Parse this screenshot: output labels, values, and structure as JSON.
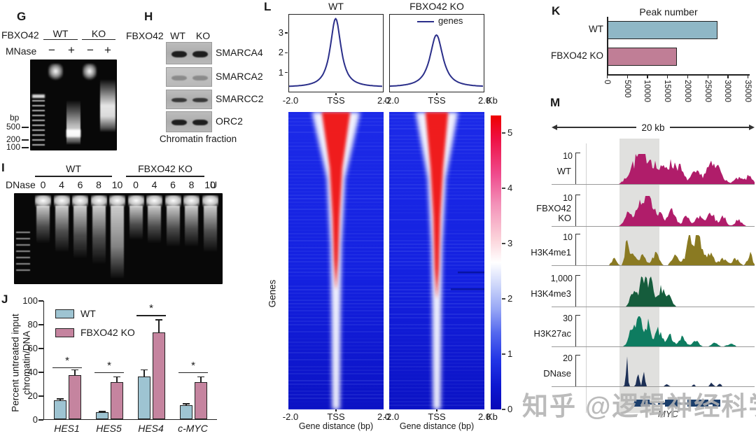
{
  "watermark": "知乎 @逻辑神经科学",
  "panel_g": {
    "label": "G",
    "row1_label": "FBXO42",
    "groups": [
      "WT",
      "KO"
    ],
    "row2_label": "MNase",
    "signs": [
      "−",
      "+",
      "−",
      "+"
    ],
    "bp": "bp",
    "markers": [
      "500",
      "200",
      "100"
    ]
  },
  "panel_h": {
    "label": "H",
    "header": "FBXO42",
    "cols": [
      "WT",
      "KO"
    ],
    "blots": [
      "SMARCA4",
      "SMARCA2",
      "SMARCC2",
      "ORC2"
    ],
    "caption": "Chromatin fraction"
  },
  "panel_i": {
    "label": "I",
    "groups": [
      "WT",
      "FBXO42 KO"
    ],
    "row_label": "DNase",
    "doses": [
      "0",
      "4",
      "6",
      "8",
      "10",
      "0",
      "4",
      "6",
      "8",
      "10"
    ],
    "unit": "U"
  },
  "panel_j": {
    "label": "J"
  },
  "panel_k": {
    "label": "K"
  },
  "panel_l": {
    "label": "L"
  },
  "panel_m": {
    "label": "M"
  },
  "chart_data": [
    {
      "id": "J",
      "type": "bar",
      "ylabel": "Percent untreated input chromatin/DNA",
      "categories": [
        "HES1",
        "HES5",
        "HES4",
        "c-MYC"
      ],
      "series": [
        {
          "name": "WT",
          "color": "#9ec4d2",
          "values": [
            16,
            6,
            36,
            12
          ],
          "errors": [
            1.5,
            1,
            6,
            1.5
          ]
        },
        {
          "name": "FBXO42 KO",
          "color": "#c5849f",
          "values": [
            37,
            31,
            73,
            31
          ],
          "errors": [
            5,
            5,
            11,
            5
          ]
        }
      ],
      "ylim": [
        0,
        100
      ],
      "yticks": [
        0,
        20,
        40,
        60,
        80,
        100
      ],
      "significance": [
        {
          "label": "*",
          "y": 44
        },
        {
          "label": "*",
          "y": 40
        },
        {
          "label": "*",
          "y": 88
        },
        {
          "label": "*",
          "y": 40
        }
      ]
    },
    {
      "id": "K",
      "type": "bar",
      "orientation": "horizontal",
      "title": "Peak number",
      "categories": [
        "WT",
        "FBXO42 KO"
      ],
      "values": [
        27400,
        17300
      ],
      "colors": [
        "#8fb7c6",
        "#c07e96"
      ],
      "xlim": [
        0,
        35000
      ],
      "xticks": [
        0,
        5000,
        10000,
        15000,
        20000,
        25000,
        30000,
        35000
      ]
    },
    {
      "id": "L-profiles",
      "type": "line",
      "legend": "genes",
      "line_color": "#2b2f8a",
      "x_ticks": [
        "-2.0",
        "TSS",
        "2.0"
      ],
      "x_unit": "Kb",
      "yticks": [
        1,
        2,
        3
      ],
      "baseline": 0.2,
      "panels": [
        {
          "title": "WT",
          "peak": 3.75,
          "width": 0.3
        },
        {
          "title": "FBXO42 KO",
          "peak": 2.9,
          "width": 0.36
        }
      ]
    },
    {
      "id": "L-heatmaps",
      "type": "heatmap",
      "row_label": "Genes",
      "xlabel": "Gene distance (bp)",
      "x_ticks": [
        "-2.0",
        "TSS",
        "2.0"
      ],
      "x_unit": "Kb",
      "colorbar_ticks": [
        5,
        4,
        3,
        2,
        1,
        0
      ],
      "colorbar_colors": {
        "high": "#ee0000",
        "mid": "#ffffff",
        "low": "#0a0ac0"
      },
      "panels": [
        {
          "title": "WT",
          "core_top_w": 0.3,
          "core_depth": 0.6
        },
        {
          "title": "FBXO42 KO",
          "core_top_w": 0.24,
          "core_depth": 0.63
        }
      ]
    },
    {
      "id": "M",
      "type": "genome-tracks",
      "scale_label": "20 kb",
      "gene": "MYC",
      "tracks": [
        {
          "name": "WT",
          "scale": "10",
          "color": "#b01d6a",
          "clusters": [
            [
              0.24,
              0.035,
              0.55
            ],
            [
              0.3,
              0.03,
              0.9
            ],
            [
              0.36,
              0.03,
              0.65
            ],
            [
              0.45,
              0.035,
              0.6
            ],
            [
              0.52,
              0.03,
              0.55
            ],
            [
              0.63,
              0.03,
              0.35
            ],
            [
              0.72,
              0.03,
              0.55
            ],
            [
              0.78,
              0.025,
              0.45
            ],
            [
              0.9,
              0.03,
              0.18
            ],
            [
              0.97,
              0.02,
              0.25
            ]
          ]
        },
        {
          "name": "FBXO42 KO",
          "scale": "10",
          "color": "#b01d6a",
          "clusters": [
            [
              0.2,
              0.02,
              0.35
            ],
            [
              0.28,
              0.03,
              0.75
            ],
            [
              0.33,
              0.025,
              0.85
            ],
            [
              0.4,
              0.025,
              0.5
            ],
            [
              0.48,
              0.025,
              0.45
            ],
            [
              0.57,
              0.02,
              0.3
            ],
            [
              0.66,
              0.025,
              0.35
            ],
            [
              0.73,
              0.02,
              0.4
            ],
            [
              0.8,
              0.02,
              0.3
            ],
            [
              0.9,
              0.02,
              0.2
            ]
          ]
        },
        {
          "name": "H3K4me1",
          "scale": "10",
          "color": "#8a7a22",
          "clusters": [
            [
              0.12,
              0.015,
              0.2
            ],
            [
              0.2,
              0.012,
              0.8
            ],
            [
              0.24,
              0.015,
              0.35
            ],
            [
              0.3,
              0.02,
              0.3
            ],
            [
              0.38,
              0.02,
              0.35
            ],
            [
              0.5,
              0.02,
              0.3
            ],
            [
              0.6,
              0.025,
              0.95
            ],
            [
              0.65,
              0.02,
              0.8
            ],
            [
              0.72,
              0.02,
              0.45
            ],
            [
              0.8,
              0.02,
              0.25
            ],
            [
              0.88,
              0.02,
              0.2
            ],
            [
              0.97,
              0.015,
              0.35
            ]
          ]
        },
        {
          "name": "H3K4me3",
          "scale": "1,000",
          "color": "#155c3c",
          "clusters": [
            [
              0.24,
              0.018,
              0.55
            ],
            [
              0.3,
              0.02,
              0.95
            ],
            [
              0.35,
              0.018,
              0.85
            ],
            [
              0.42,
              0.02,
              0.6
            ],
            [
              0.47,
              0.015,
              0.3
            ]
          ]
        },
        {
          "name": "H3K27ac",
          "scale": "30",
          "color": "#0e7c60",
          "clusters": [
            [
              0.23,
              0.02,
              0.55
            ],
            [
              0.28,
              0.018,
              0.95
            ],
            [
              0.33,
              0.02,
              0.7
            ],
            [
              0.4,
              0.02,
              0.55
            ],
            [
              0.47,
              0.02,
              0.35
            ],
            [
              0.55,
              0.02,
              0.3
            ],
            [
              0.63,
              0.02,
              0.18
            ],
            [
              0.75,
              0.02,
              0.12
            ],
            [
              0.85,
              0.02,
              0.08
            ]
          ]
        },
        {
          "name": "DNase",
          "scale": "20",
          "color": "#1c2f55",
          "clusters": [
            [
              0.2,
              0.006,
              0.95
            ],
            [
              0.27,
              0.007,
              0.55
            ],
            [
              0.305,
              0.006,
              0.6
            ],
            [
              0.45,
              0.01,
              0.06
            ],
            [
              0.62,
              0.008,
              0.05
            ],
            [
              0.73,
              0.012,
              0.1
            ],
            [
              0.78,
              0.01,
              0.08
            ]
          ]
        }
      ]
    }
  ]
}
